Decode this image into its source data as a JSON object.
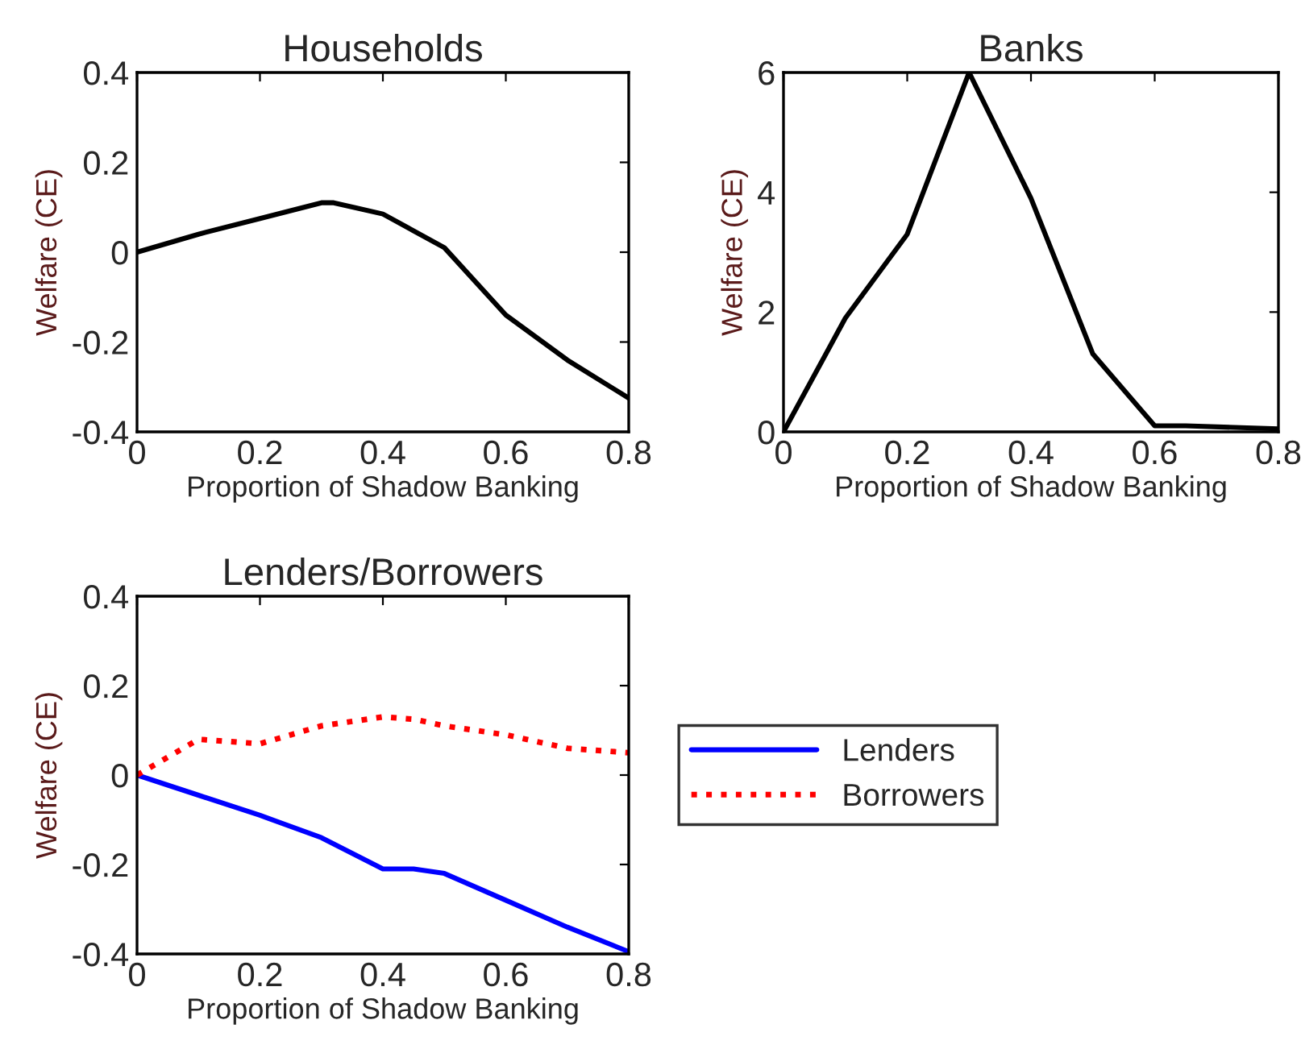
{
  "chart_data": [
    {
      "type": "line",
      "title": "Households",
      "xlabel": "Proportion of Shadow Banking",
      "ylabel": "Welfare (CE)",
      "xlim": [
        0,
        0.8
      ],
      "ylim": [
        -0.4,
        0.4
      ],
      "xticks": [
        0,
        0.2,
        0.4,
        0.6,
        0.8
      ],
      "yticks": [
        -0.4,
        -0.2,
        0,
        0.2,
        0.4
      ],
      "grid": false,
      "legend": false,
      "series": [
        {
          "color": "#000000",
          "line_style": "solid",
          "x": [
            0,
            0.1,
            0.2,
            0.3,
            0.32,
            0.4,
            0.5,
            0.6,
            0.7,
            0.8
          ],
          "values": [
            0,
            0.04,
            0.075,
            0.11,
            0.11,
            0.085,
            0.01,
            -0.14,
            -0.24,
            -0.325
          ]
        }
      ]
    },
    {
      "type": "line",
      "title": "Banks",
      "xlabel": "Proportion of Shadow Banking",
      "ylabel": "Welfare (CE)",
      "xlim": [
        0,
        0.8
      ],
      "ylim": [
        0,
        6
      ],
      "xticks": [
        0,
        0.2,
        0.4,
        0.6,
        0.8
      ],
      "yticks": [
        0,
        2,
        4,
        6
      ],
      "grid": false,
      "legend": false,
      "series": [
        {
          "color": "#000000",
          "line_style": "solid",
          "x": [
            0,
            0.1,
            0.2,
            0.3,
            0.4,
            0.5,
            0.6,
            0.65,
            0.8
          ],
          "values": [
            0,
            1.9,
            3.3,
            6.0,
            3.9,
            1.3,
            0.1,
            0.1,
            0.05
          ]
        }
      ]
    },
    {
      "type": "line",
      "title": "Lenders/Borrowers",
      "xlabel": "Proportion of Shadow Banking",
      "ylabel": "Welfare (CE)",
      "xlim": [
        0,
        0.8
      ],
      "ylim": [
        -0.4,
        0.4
      ],
      "xticks": [
        0,
        0.2,
        0.4,
        0.6,
        0.8
      ],
      "yticks": [
        -0.4,
        -0.2,
        0,
        0.2,
        0.4
      ],
      "grid": false,
      "legend": "right",
      "series": [
        {
          "name": "Lenders",
          "color": "#0000ff",
          "line_style": "solid",
          "x": [
            0,
            0.1,
            0.2,
            0.3,
            0.4,
            0.45,
            0.5,
            0.6,
            0.7,
            0.8
          ],
          "values": [
            0,
            -0.045,
            -0.09,
            -0.14,
            -0.21,
            -0.21,
            -0.22,
            -0.28,
            -0.34,
            -0.395
          ]
        },
        {
          "name": "Borrowers",
          "color": "#ff0000",
          "line_style": "dotted",
          "x": [
            0,
            0.05,
            0.1,
            0.15,
            0.2,
            0.25,
            0.3,
            0.35,
            0.4,
            0.45,
            0.5,
            0.6,
            0.7,
            0.8
          ],
          "values": [
            0,
            0.04,
            0.08,
            0.075,
            0.07,
            0.09,
            0.11,
            0.12,
            0.13,
            0.125,
            0.11,
            0.09,
            0.06,
            0.05
          ]
        }
      ]
    }
  ]
}
